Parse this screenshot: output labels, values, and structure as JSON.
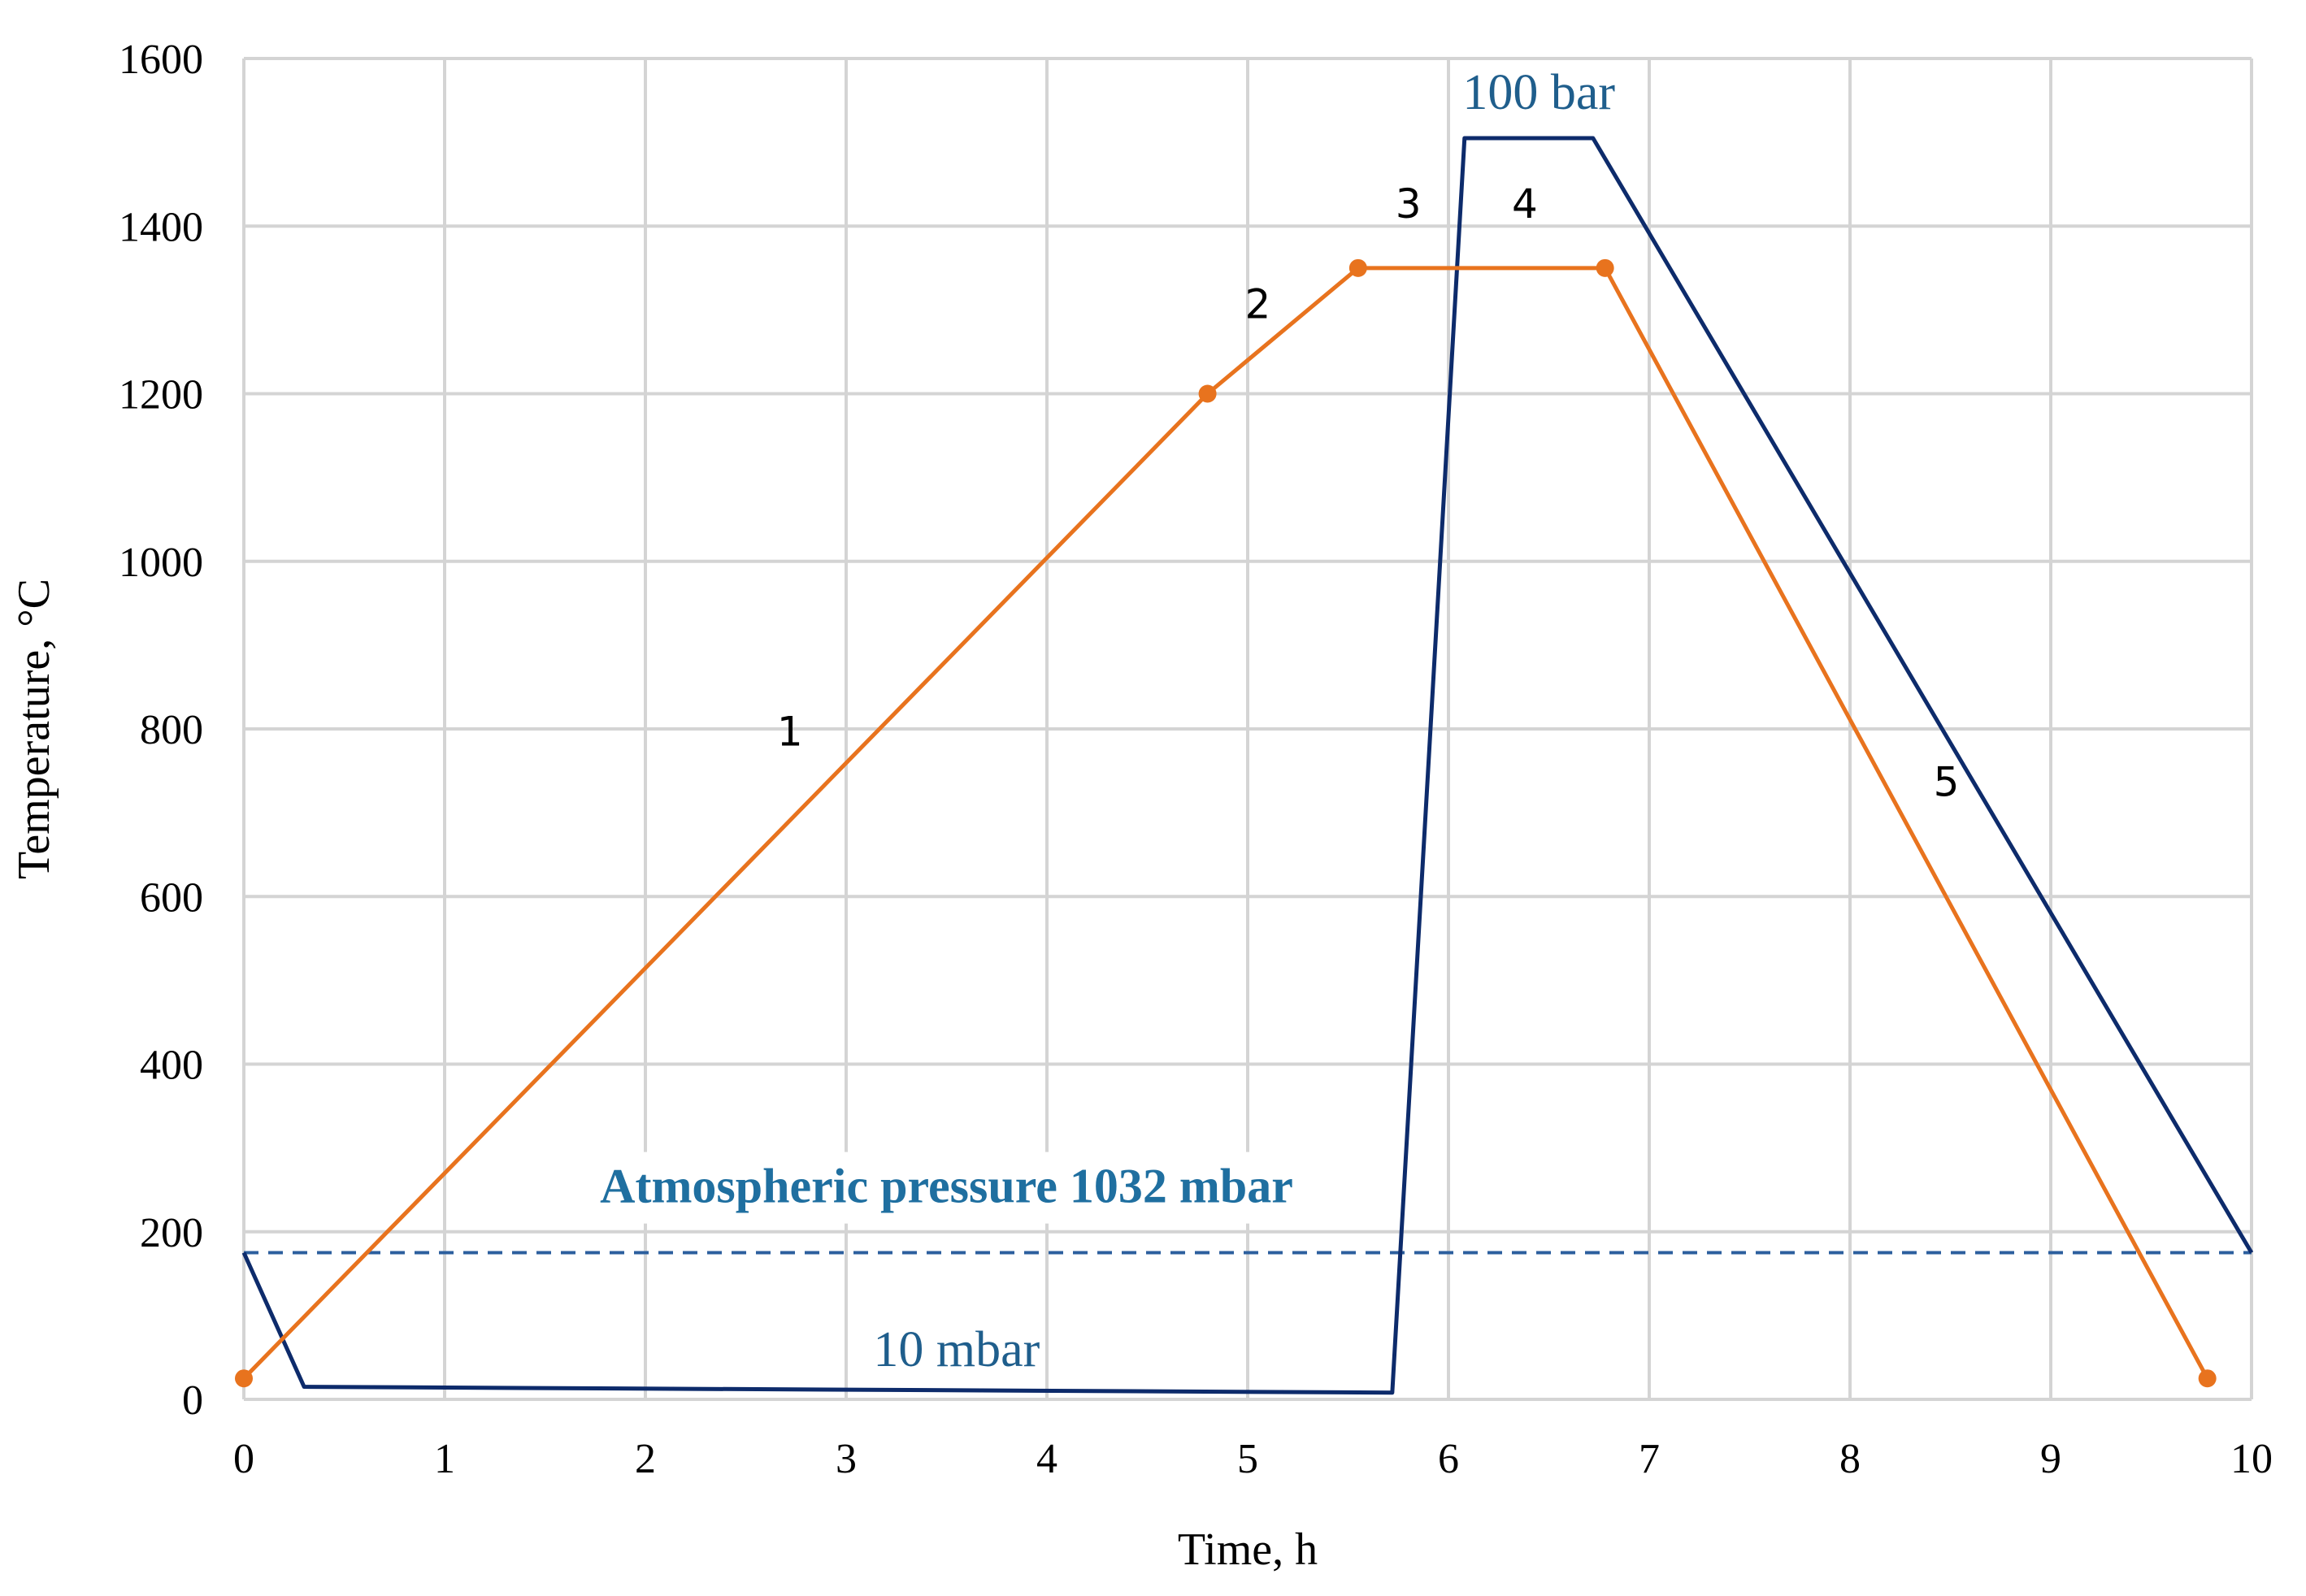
{
  "chart_data": {
    "type": "line",
    "title": "",
    "xlabel": "Time, h",
    "ylabel": "Temperature, °C",
    "xlim": [
      0,
      10
    ],
    "ylim": [
      0,
      1600
    ],
    "x_ticks": [
      "0",
      "1",
      "2",
      "3",
      "4",
      "5",
      "6",
      "7",
      "8",
      "9",
      "10"
    ],
    "y_ticks": [
      "0",
      "200",
      "400",
      "600",
      "800",
      "1000",
      "1200",
      "1400",
      "1600"
    ],
    "grid": true,
    "series": [
      {
        "name": "Temperature",
        "color": "#e8731e",
        "markers": true,
        "x": [
          0,
          4.8,
          5.55,
          6.78,
          9.78
        ],
        "y": [
          25,
          1200,
          1350,
          1350,
          25
        ]
      },
      {
        "name": "Pressure",
        "color": "#0d2b6b",
        "markers": false,
        "x": [
          0,
          0.3,
          5.72,
          6.08,
          6.72,
          10
        ],
        "y": [
          175,
          15,
          8,
          1505,
          1505,
          175
        ]
      },
      {
        "name": "Atmospheric pressure",
        "color": "#2c5f9e",
        "dashed": true,
        "x": [
          0,
          10
        ],
        "y": [
          175,
          175
        ]
      }
    ],
    "annotations": [
      {
        "text": "1",
        "x": 2.72,
        "y": 780,
        "kind": "segment"
      },
      {
        "text": "2",
        "x": 5.05,
        "y": 1290,
        "kind": "segment"
      },
      {
        "text": "3",
        "x": 5.8,
        "y": 1410,
        "kind": "segment"
      },
      {
        "text": "4",
        "x": 6.38,
        "y": 1410,
        "kind": "segment"
      },
      {
        "text": "5",
        "x": 8.48,
        "y": 720,
        "kind": "segment"
      },
      {
        "text": "100 bar",
        "x": 6.45,
        "y": 1540,
        "kind": "pressure"
      },
      {
        "text": "10 mbar",
        "x": 3.55,
        "y": 40,
        "kind": "pressure"
      },
      {
        "text": "Atmospheric pressure 1032 mbar",
        "x": 3.5,
        "y": 235,
        "kind": "atm"
      }
    ]
  }
}
